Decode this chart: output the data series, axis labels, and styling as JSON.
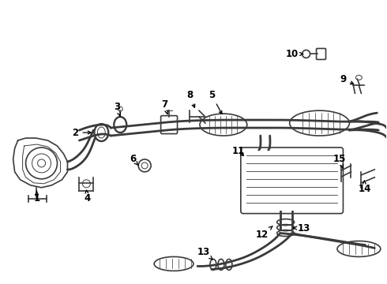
{
  "bg_color": "#ffffff",
  "line_color": "#3a3a3a",
  "label_color": "#000000",
  "figsize": [
    4.9,
    3.6
  ],
  "dpi": 100,
  "lw_main": 1.2,
  "lw_thin": 0.7,
  "lw_pipe": 2.0
}
